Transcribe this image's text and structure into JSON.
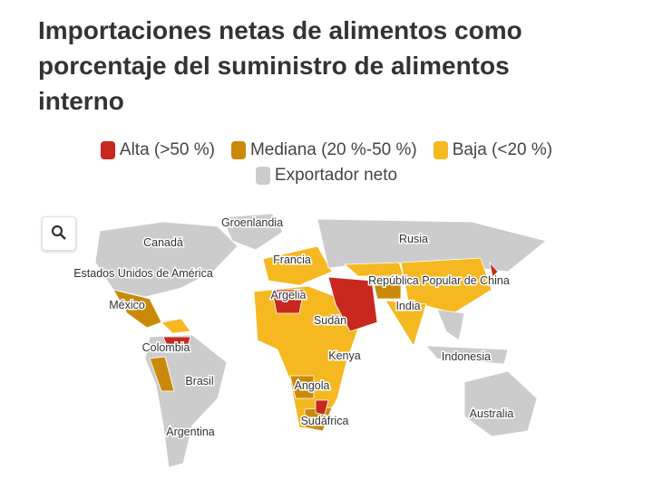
{
  "header": {
    "title": "Importaciones netas de alimentos como porcentaje del suministro de alimentos interno"
  },
  "legend": {
    "items": [
      {
        "label": "Alta (>50 %)",
        "color": "#c8281e"
      },
      {
        "label": "Mediana (20 %-50 %)",
        "color": "#c98a0a"
      },
      {
        "label": "Baja (<20 %)",
        "color": "#f5b820"
      },
      {
        "label": "Exportador neto",
        "color": "#cccccc"
      }
    ]
  },
  "map": {
    "labels": [
      "Groenlandia",
      "Canadá",
      "Rusia",
      "Francia",
      "Estados Unidos de América",
      "República Popular de China",
      "Argelia",
      "México",
      "India",
      "Sudán",
      "Colombia",
      "Kenya",
      "Indonesia",
      "Brasil",
      "Angola",
      "Australia",
      "Sudáfrica",
      "Argentina"
    ]
  }
}
